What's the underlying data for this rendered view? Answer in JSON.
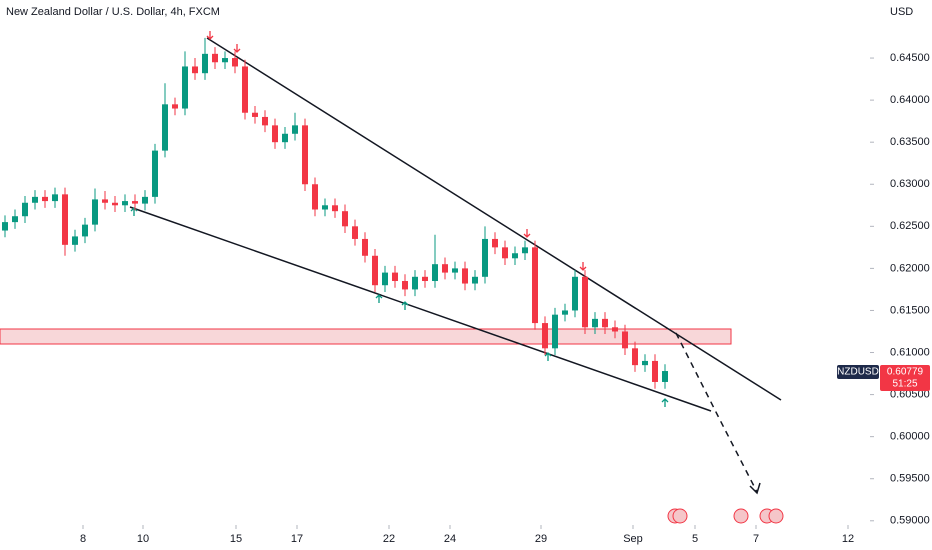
{
  "chart_data": {
    "type": "candlestick",
    "title": "New Zealand Dollar / U.S. Dollar, 4h, FXCM",
    "currency": "USD",
    "symbol": "NZDUSD",
    "last_price": "0.60779",
    "countdown": "51:25",
    "up_color": "#089981",
    "down_color": "#f23645",
    "x": [
      0,
      1,
      2,
      3,
      4,
      5,
      6,
      7,
      8,
      9,
      10,
      11,
      12,
      13,
      14,
      15,
      16,
      17,
      18,
      19,
      20,
      21,
      22,
      23,
      24,
      25,
      26,
      27,
      28,
      29,
      30,
      31,
      32,
      33,
      34,
      35,
      36,
      37,
      38,
      39,
      40,
      41,
      42,
      43,
      44,
      45,
      46,
      47,
      48,
      49,
      50,
      51,
      52,
      53,
      54,
      55,
      56,
      57,
      58,
      59,
      60,
      61,
      62,
      63,
      64,
      65,
      66
    ],
    "open": [
      0.6245,
      0.6255,
      0.6262,
      0.6278,
      0.6285,
      0.628,
      0.6288,
      0.6228,
      0.6238,
      0.6252,
      0.6282,
      0.6278,
      0.6275,
      0.628,
      0.6277,
      0.6285,
      0.634,
      0.6395,
      0.639,
      0.644,
      0.6432,
      0.6455,
      0.6445,
      0.645,
      0.644,
      0.6385,
      0.638,
      0.637,
      0.635,
      0.636,
      0.637,
      0.63,
      0.627,
      0.6275,
      0.6268,
      0.625,
      0.6235,
      0.6215,
      0.618,
      0.6195,
      0.6185,
      0.6175,
      0.619,
      0.6185,
      0.6205,
      0.6195,
      0.62,
      0.6182,
      0.619,
      0.6235,
      0.6225,
      0.6212,
      0.6218,
      0.6225,
      0.6135,
      0.6105,
      0.6145,
      0.615,
      0.619,
      0.613,
      0.614,
      0.613,
      0.6125,
      0.6105,
      0.6085,
      0.609,
      0.6065
    ],
    "high": [
      0.6263,
      0.627,
      0.6286,
      0.6293,
      0.6293,
      0.6296,
      0.6296,
      0.6246,
      0.626,
      0.6295,
      0.6292,
      0.6286,
      0.6288,
      0.6288,
      0.6293,
      0.6348,
      0.642,
      0.6403,
      0.6458,
      0.645,
      0.6474,
      0.6463,
      0.6458,
      0.6458,
      0.6448,
      0.6393,
      0.6388,
      0.6378,
      0.6368,
      0.6385,
      0.6378,
      0.6308,
      0.6283,
      0.6283,
      0.6276,
      0.6258,
      0.6243,
      0.6223,
      0.6203,
      0.6203,
      0.6193,
      0.6198,
      0.6198,
      0.624,
      0.6213,
      0.6208,
      0.6208,
      0.6198,
      0.625,
      0.6243,
      0.6233,
      0.6226,
      0.6233,
      0.6233,
      0.6143,
      0.6153,
      0.6158,
      0.6198,
      0.6198,
      0.6148,
      0.6148,
      0.6138,
      0.6133,
      0.6113,
      0.6098,
      0.6098,
      0.6086
    ],
    "low": [
      0.6237,
      0.6247,
      0.6254,
      0.627,
      0.6272,
      0.6272,
      0.6215,
      0.622,
      0.623,
      0.6244,
      0.627,
      0.6267,
      0.6267,
      0.6269,
      0.6269,
      0.6277,
      0.6332,
      0.6382,
      0.6382,
      0.6424,
      0.6424,
      0.6437,
      0.6437,
      0.6432,
      0.6377,
      0.6372,
      0.6362,
      0.6342,
      0.6342,
      0.6352,
      0.6292,
      0.6262,
      0.6262,
      0.626,
      0.6242,
      0.6227,
      0.6207,
      0.6172,
      0.6172,
      0.6177,
      0.6167,
      0.6167,
      0.6177,
      0.6177,
      0.6187,
      0.6187,
      0.6174,
      0.6174,
      0.6182,
      0.6217,
      0.6204,
      0.6204,
      0.621,
      0.6127,
      0.6097,
      0.6097,
      0.6137,
      0.6142,
      0.6122,
      0.6122,
      0.6122,
      0.6117,
      0.6097,
      0.6077,
      0.6077,
      0.6057,
      0.6057
    ],
    "close": [
      0.6255,
      0.6262,
      0.6278,
      0.6285,
      0.628,
      0.6288,
      0.6228,
      0.6238,
      0.6252,
      0.6282,
      0.6278,
      0.6275,
      0.628,
      0.6277,
      0.6285,
      0.634,
      0.6395,
      0.639,
      0.644,
      0.6432,
      0.6455,
      0.6445,
      0.645,
      0.644,
      0.6385,
      0.638,
      0.637,
      0.635,
      0.636,
      0.637,
      0.63,
      0.627,
      0.6275,
      0.6268,
      0.625,
      0.6235,
      0.6215,
      0.618,
      0.6195,
      0.6185,
      0.6175,
      0.619,
      0.6185,
      0.6205,
      0.6195,
      0.62,
      0.6182,
      0.619,
      0.6235,
      0.6225,
      0.6212,
      0.6218,
      0.6225,
      0.6135,
      0.6105,
      0.6145,
      0.615,
      0.619,
      0.613,
      0.614,
      0.613,
      0.6125,
      0.6105,
      0.6085,
      0.609,
      0.6065,
      0.6078
    ],
    "xlim": [
      -0.5,
      86.5
    ],
    "xticks": [
      {
        "value": 7.8,
        "label": "8"
      },
      {
        "value": 13.8,
        "label": "10"
      },
      {
        "value": 23.1,
        "label": "15"
      },
      {
        "value": 29.2,
        "label": "17"
      },
      {
        "value": 38.4,
        "label": "22"
      },
      {
        "value": 44.5,
        "label": "24"
      },
      {
        "value": 53.6,
        "label": "29"
      },
      {
        "value": 62.8,
        "label": "Sep"
      },
      {
        "value": 69,
        "label": "5"
      },
      {
        "value": 75.1,
        "label": "7"
      },
      {
        "value": 84.3,
        "label": "12"
      }
    ],
    "ylim": [
      0.5895,
      0.6519
    ],
    "yticks": [
      {
        "value": 0.645,
        "label": "0.64500"
      },
      {
        "value": 0.64,
        "label": "0.64000"
      },
      {
        "value": 0.635,
        "label": "0.63500"
      },
      {
        "value": 0.63,
        "label": "0.63000"
      },
      {
        "value": 0.625,
        "label": "0.62500"
      },
      {
        "value": 0.62,
        "label": "0.62000"
      },
      {
        "value": 0.615,
        "label": "0.61500"
      },
      {
        "value": 0.61,
        "label": "0.61000"
      },
      {
        "value": 0.605,
        "label": "0.60500"
      },
      {
        "value": 0.6,
        "label": "0.60000"
      },
      {
        "value": 0.595,
        "label": "0.59500"
      },
      {
        "value": 0.59,
        "label": "0.59000"
      }
    ]
  }
}
